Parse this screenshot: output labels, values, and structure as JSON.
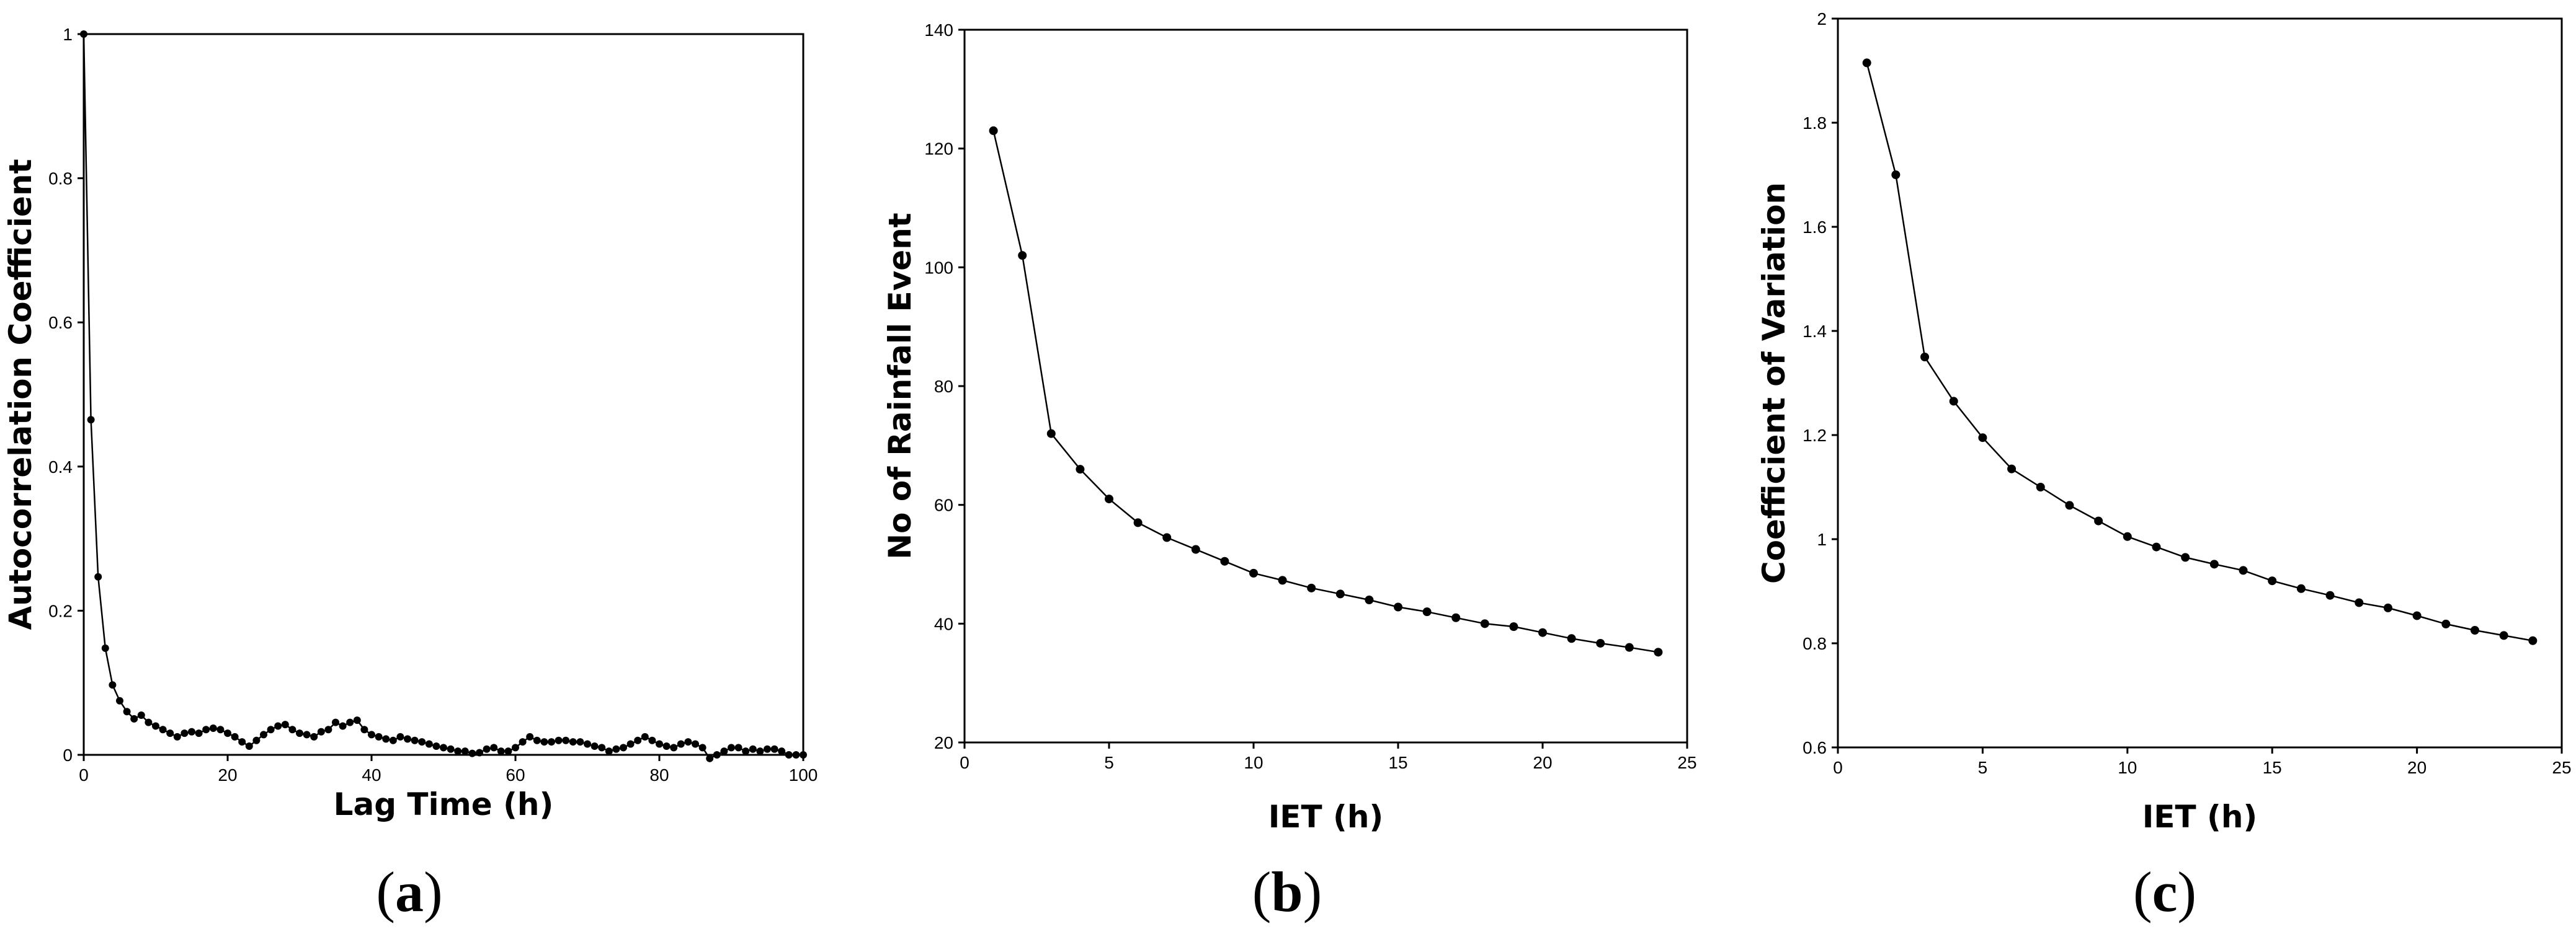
{
  "chart_data": [
    {
      "type": "line",
      "panel_label_prefix": "(",
      "panel_label_letter": "a",
      "panel_label_suffix": ")",
      "xlabel": "Lag Time (h)",
      "ylabel": "Autocorrelation Coefficient",
      "xlim": [
        0,
        100
      ],
      "ylim": [
        0,
        1
      ],
      "xticks": [
        0,
        20,
        40,
        60,
        80,
        100
      ],
      "yticks": [
        0,
        0.2,
        0.4,
        0.6,
        0.8,
        1
      ],
      "xtick_labels": [
        "0",
        "20",
        "40",
        "60",
        "80",
        "100"
      ],
      "ytick_labels": [
        "0",
        "0.2",
        "0.4",
        "0.6",
        "0.8",
        "1"
      ],
      "grid": false,
      "series": [
        {
          "x": [
            0,
            1,
            2,
            3,
            4,
            5,
            6,
            7,
            8,
            9,
            10,
            11,
            12,
            13,
            14,
            15,
            16,
            17,
            18,
            19,
            20,
            21,
            22,
            23,
            24,
            25,
            26,
            27,
            28,
            29,
            30,
            31,
            32,
            33,
            34,
            35,
            36,
            37,
            38,
            39,
            40,
            41,
            42,
            43,
            44,
            45,
            46,
            47,
            48,
            49,
            50,
            51,
            52,
            53,
            54,
            55,
            56,
            57,
            58,
            59,
            60,
            61,
            62,
            63,
            64,
            65,
            66,
            67,
            68,
            69,
            70,
            71,
            72,
            73,
            74,
            75,
            76,
            77,
            78,
            79,
            80,
            81,
            82,
            83,
            84,
            85,
            86,
            87,
            88,
            89,
            90,
            91,
            92,
            93,
            94,
            95,
            96,
            97,
            98,
            99,
            100
          ],
          "y": [
            1.0,
            0.465,
            0.247,
            0.148,
            0.097,
            0.075,
            0.06,
            0.05,
            0.055,
            0.045,
            0.04,
            0.035,
            0.03,
            0.025,
            0.03,
            0.032,
            0.03,
            0.035,
            0.037,
            0.035,
            0.03,
            0.025,
            0.018,
            0.012,
            0.02,
            0.028,
            0.035,
            0.04,
            0.042,
            0.035,
            0.03,
            0.028,
            0.025,
            0.032,
            0.035,
            0.045,
            0.04,
            0.045,
            0.048,
            0.035,
            0.028,
            0.025,
            0.022,
            0.02,
            0.025,
            0.022,
            0.02,
            0.018,
            0.015,
            0.012,
            0.01,
            0.008,
            0.005,
            0.005,
            0.002,
            0.003,
            0.008,
            0.01,
            0.005,
            0.005,
            0.01,
            0.018,
            0.025,
            0.02,
            0.018,
            0.018,
            0.02,
            0.02,
            0.018,
            0.018,
            0.015,
            0.012,
            0.01,
            0.005,
            0.008,
            0.01,
            0.015,
            0.02,
            0.025,
            0.02,
            0.015,
            0.012,
            0.01,
            0.015,
            0.018,
            0.015,
            0.01,
            -0.005,
            0.0,
            0.005,
            0.01,
            0.01,
            0.005,
            0.008,
            0.005,
            0.008,
            0.008,
            0.005,
            0.0,
            0.0,
            0.0
          ]
        }
      ]
    },
    {
      "type": "line",
      "panel_label_prefix": "(",
      "panel_label_letter": "b",
      "panel_label_suffix": ")",
      "xlabel": "IET (h)",
      "ylabel": "No of Rainfall Event",
      "xlim": [
        0,
        25
      ],
      "ylim": [
        20,
        140
      ],
      "xticks": [
        0,
        5,
        10,
        15,
        20,
        25
      ],
      "yticks": [
        20,
        40,
        60,
        80,
        100,
        120,
        140
      ],
      "xtick_labels": [
        "0",
        "5",
        "10",
        "15",
        "20",
        "25"
      ],
      "ytick_labels": [
        "20",
        "40",
        "60",
        "80",
        "100",
        "120",
        "140"
      ],
      "grid": false,
      "series": [
        {
          "x": [
            1,
            2,
            3,
            4,
            5,
            6,
            7,
            8,
            9,
            10,
            11,
            12,
            13,
            14,
            15,
            16,
            17,
            18,
            19,
            20,
            21,
            22,
            23,
            24
          ],
          "y": [
            123,
            102,
            72,
            66,
            61,
            57,
            54.5,
            52.5,
            50.5,
            48.5,
            47.3,
            46,
            45,
            44,
            42.8,
            42,
            41,
            40,
            39.5,
            38.5,
            37.5,
            36.7,
            36,
            35.2
          ]
        }
      ]
    },
    {
      "type": "line",
      "panel_label_prefix": "(",
      "panel_label_letter": "c",
      "panel_label_suffix": ")",
      "xlabel": "IET (h)",
      "ylabel": "Coefficient of Variation",
      "xlim": [
        0,
        25
      ],
      "ylim": [
        0.6,
        2
      ],
      "xticks": [
        0,
        5,
        10,
        15,
        20,
        25
      ],
      "yticks": [
        0.6,
        0.8,
        1,
        1.2,
        1.4,
        1.6,
        1.8,
        2
      ],
      "xtick_labels": [
        "0",
        "5",
        "10",
        "15",
        "20",
        "25"
      ],
      "ytick_labels": [
        "0.6",
        "0.8",
        "1",
        "1.2",
        "1.4",
        "1.6",
        "1.8",
        "2"
      ],
      "grid": false,
      "series": [
        {
          "x": [
            1,
            2,
            3,
            4,
            5,
            6,
            7,
            8,
            9,
            10,
            11,
            12,
            13,
            14,
            15,
            16,
            17,
            18,
            19,
            20,
            21,
            22,
            23,
            24
          ],
          "y": [
            1.915,
            1.7,
            1.35,
            1.265,
            1.195,
            1.135,
            1.1,
            1.065,
            1.035,
            1.005,
            0.985,
            0.965,
            0.952,
            0.94,
            0.92,
            0.905,
            0.892,
            0.878,
            0.868,
            0.853,
            0.837,
            0.825,
            0.815,
            0.805
          ]
        }
      ]
    }
  ]
}
